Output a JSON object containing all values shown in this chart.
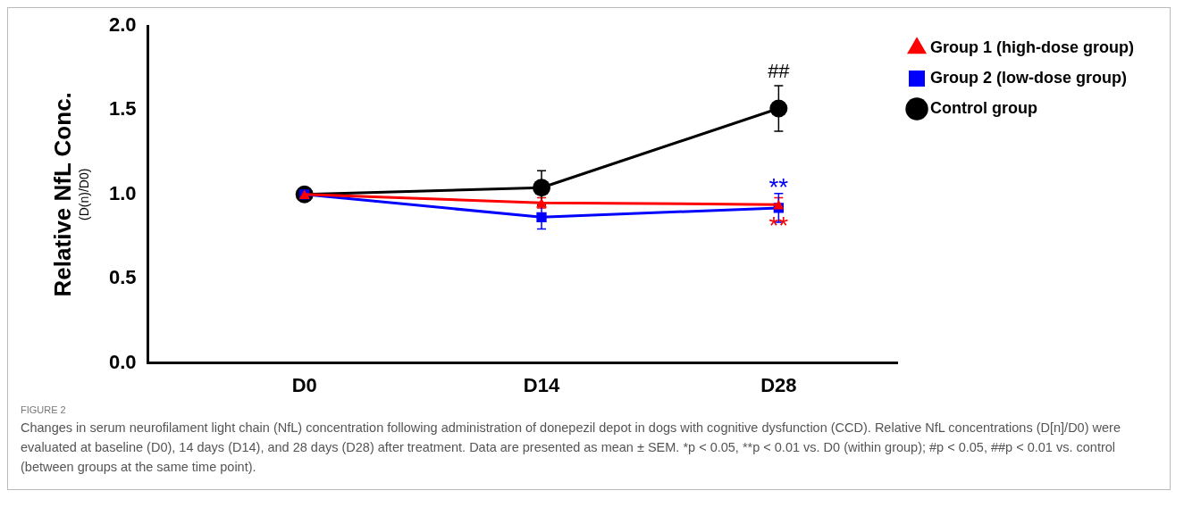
{
  "chart_data": {
    "type": "line",
    "categories": [
      "D0",
      "D14",
      "D28"
    ],
    "ylabel": "Relative NfL Conc.\n(D(n)/D0)",
    "ylim": [
      0,
      2
    ],
    "yticks": [
      {
        "value": 0,
        "label": "0.0"
      },
      0.5,
      {
        "value": 1,
        "label": "1.0"
      },
      1.5,
      {
        "value": 2,
        "label": "2.0"
      }
    ],
    "grid": false,
    "legend": "top right",
    "line_style": "solid",
    "series": [
      {
        "name": "Group 1 (high-dose group)",
        "color": "#ff0000",
        "marker": "triangle",
        "values": [
          1.0,
          0.95,
          0.94
        ],
        "errors": [
          null,
          0.03,
          0.04
        ],
        "value_labels": [
          null,
          null,
          "**"
        ]
      },
      {
        "name": "Group 2 (low-dose group)",
        "color": "#0000ff",
        "marker": "square",
        "values": [
          1.0,
          0.865,
          0.92
        ],
        "errors": [
          null,
          0.07,
          0.085
        ],
        "value_labels": [
          null,
          null,
          "**"
        ]
      },
      {
        "name": "Control group",
        "color": "#000000",
        "marker": "circle",
        "values": [
          1.0,
          1.04,
          1.51
        ],
        "errors": [
          null,
          0.1,
          0.135
        ],
        "value_labels": [
          null,
          null,
          "##"
        ]
      }
    ],
    "annotations": [
      "FIGURE 2",
      "Changes in serum neurofilament light chain (NfL) concentration following administration of donepezil depot in dogs with cognitive dysfunction (CCD). Relative NfL concentrations (D[n]/D0) were evaluated at baseline (D0), 14 days (D14), and 28 days (D28) after treatment. Data are presented as mean ± SEM. *p < 0.05, **p < 0.01 vs. D0 (within group); #p < 0.05, ##p < 0.01 vs. control (between groups at the same time point)."
    ]
  }
}
